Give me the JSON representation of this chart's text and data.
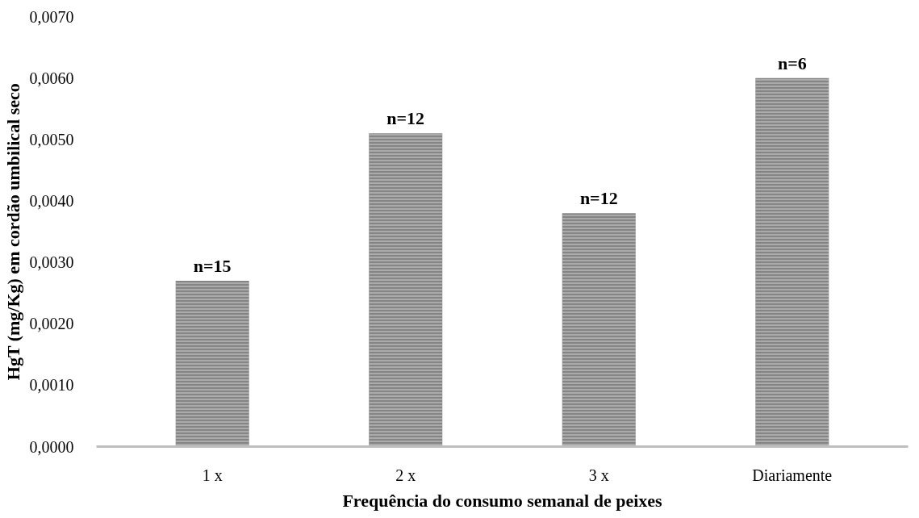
{
  "chart_data": {
    "type": "bar",
    "xlabel": "Frequência do consumo semanal de peixes",
    "ylabel": "HgT (mg/Kg) em cordão umbilical seco",
    "categories": [
      "1 x",
      "2 x",
      "3 x",
      "Diariamente"
    ],
    "values": [
      0.0027,
      0.0051,
      0.0038,
      0.006
    ],
    "annotations": [
      {
        "text": "n=15",
        "x": "1 x",
        "y": 0.0027
      },
      {
        "text": "n=12",
        "x": "2 x",
        "y": 0.0051
      },
      {
        "text": "n=12",
        "x": "3 x",
        "y": 0.0038
      },
      {
        "text": "n=6",
        "x": "Diariamente",
        "y": 0.006
      }
    ],
    "color": "#858585",
    "ylim": [
      0,
      0.007
    ],
    "yticks": [
      {
        "value": 0,
        "label": "0,0000"
      },
      {
        "value": 0.001,
        "label": "0,0010"
      },
      {
        "value": 0.002,
        "label": "0,0020"
      },
      {
        "value": 0.003,
        "label": "0,0030"
      },
      {
        "value": 0.004,
        "label": "0,0040"
      },
      {
        "value": 0.005,
        "label": "0,0050"
      },
      {
        "value": 0.006,
        "label": "0,0060"
      },
      {
        "value": 0.007,
        "label": "0,0070"
      }
    ],
    "grid": false
  }
}
